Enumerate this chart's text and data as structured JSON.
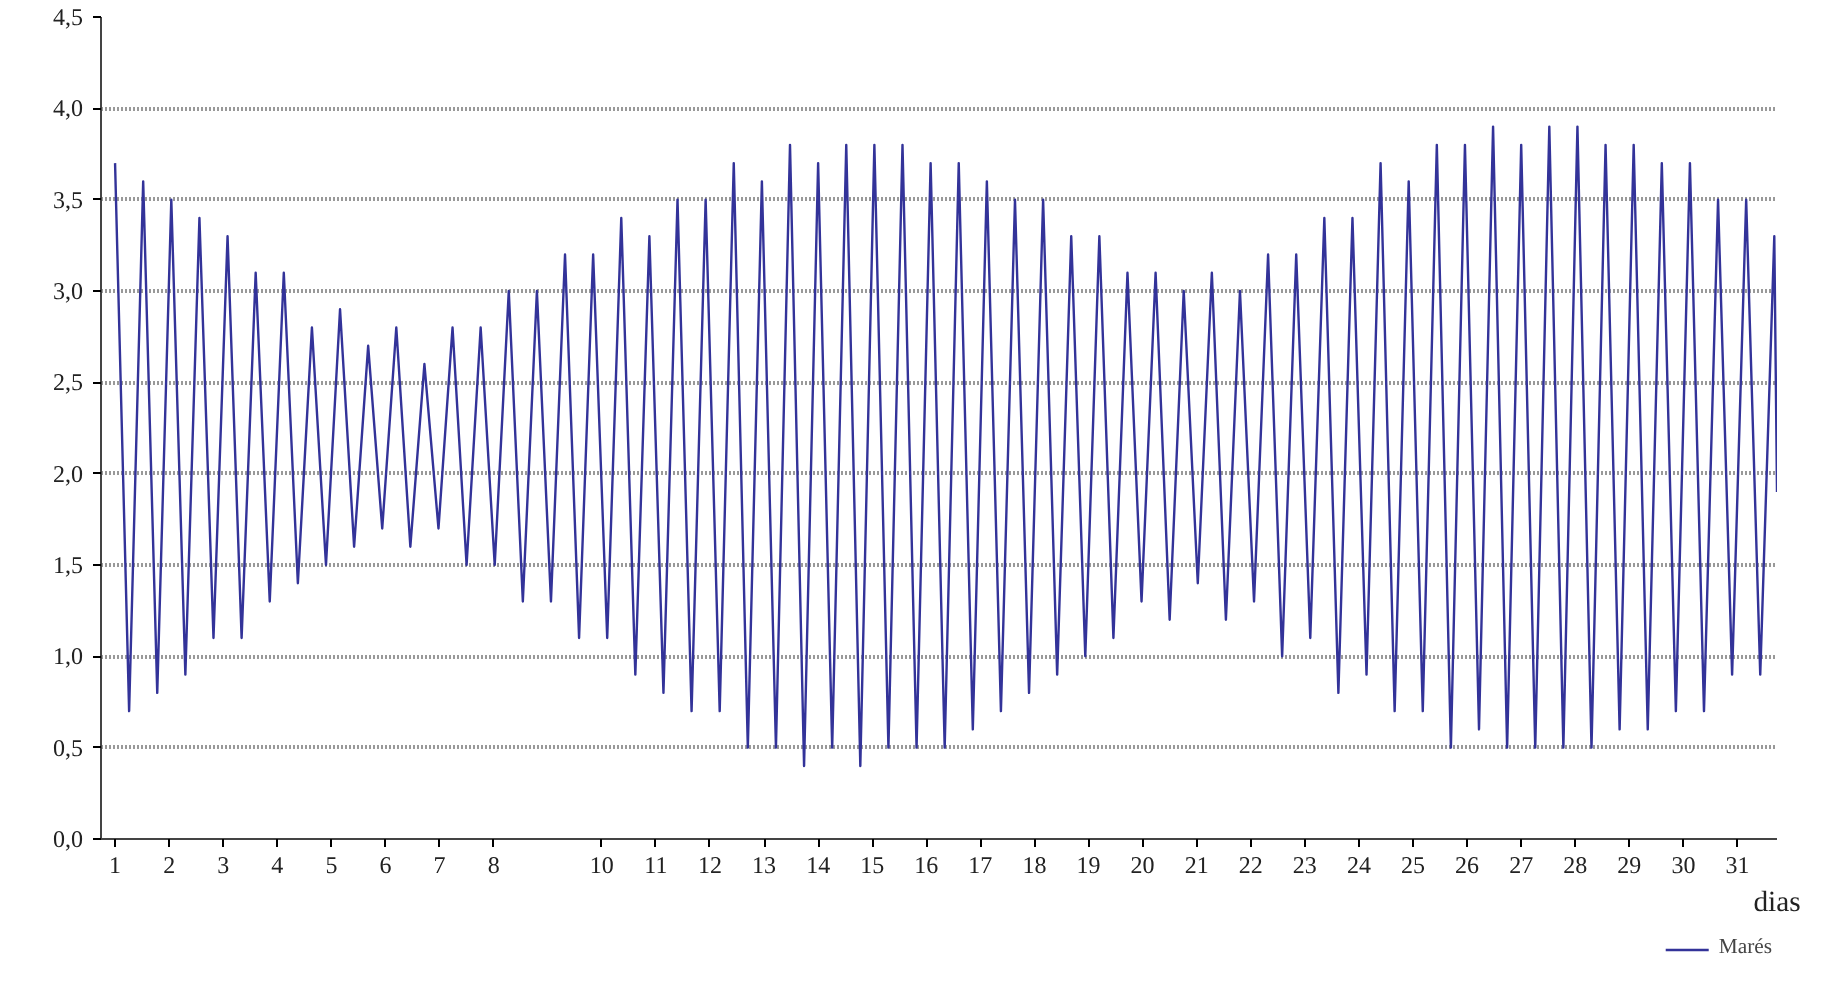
{
  "chart_data": {
    "type": "line",
    "xlabel": "dias",
    "x": [
      1.0,
      1.26,
      1.52,
      1.78,
      2.04,
      2.3,
      2.56,
      2.82,
      3.08,
      3.34,
      3.6,
      3.86,
      4.12,
      4.38,
      4.64,
      4.9,
      5.16,
      5.42,
      5.68,
      5.94,
      6.2,
      6.46,
      6.72,
      6.98,
      7.24,
      7.5,
      7.76,
      8.02,
      8.28,
      8.54,
      8.8,
      9.06,
      9.32,
      9.58,
      9.84,
      10.1,
      10.36,
      10.62,
      10.88,
      11.14,
      11.4,
      11.66,
      11.92,
      12.18,
      12.44,
      12.7,
      12.96,
      13.22,
      13.48,
      13.74,
      14.0,
      14.26,
      14.52,
      14.78,
      15.04,
      15.3,
      15.56,
      15.82,
      16.08,
      16.34,
      16.6,
      16.86,
      17.12,
      17.38,
      17.64,
      17.9,
      18.16,
      18.42,
      18.68,
      18.94,
      19.2,
      19.46,
      19.72,
      19.98,
      20.24,
      20.5,
      20.76,
      21.02,
      21.28,
      21.54,
      21.8,
      22.06,
      22.32,
      22.58,
      22.84,
      23.1,
      23.36,
      23.62,
      23.88,
      24.14,
      24.4,
      24.66,
      24.92,
      25.18,
      25.44,
      25.7,
      25.96,
      26.22,
      26.48,
      26.74,
      27.0,
      27.26,
      27.52,
      27.78,
      28.04,
      28.3,
      28.56,
      28.82,
      29.08,
      29.34,
      29.6,
      29.86,
      30.12,
      30.38,
      30.64,
      30.9,
      31.16,
      31.42,
      31.68,
      31.73
    ],
    "series": [
      {
        "name": "Marés",
        "color": "#333399",
        "values": [
          3.7,
          0.7,
          3.6,
          0.8,
          3.5,
          0.9,
          3.4,
          1.1,
          3.3,
          1.1,
          3.1,
          1.3,
          3.1,
          1.4,
          2.8,
          1.5,
          2.9,
          1.6,
          2.7,
          1.7,
          2.8,
          1.6,
          2.6,
          1.7,
          2.8,
          1.5,
          2.8,
          1.5,
          3.0,
          1.3,
          3.0,
          1.3,
          3.2,
          1.1,
          3.2,
          1.1,
          3.4,
          0.9,
          3.3,
          0.8,
          3.5,
          0.7,
          3.5,
          0.7,
          3.7,
          0.5,
          3.6,
          0.5,
          3.8,
          0.4,
          3.7,
          0.5,
          3.8,
          0.4,
          3.8,
          0.5,
          3.8,
          0.5,
          3.7,
          0.5,
          3.7,
          0.6,
          3.6,
          0.7,
          3.5,
          0.8,
          3.5,
          0.9,
          3.3,
          1.0,
          3.3,
          1.1,
          3.1,
          1.3,
          3.1,
          1.2,
          3.0,
          1.4,
          3.1,
          1.2,
          3.0,
          1.3,
          3.2,
          1.0,
          3.2,
          1.1,
          3.4,
          0.8,
          3.4,
          0.9,
          3.7,
          0.7,
          3.6,
          0.7,
          3.8,
          0.5,
          3.8,
          0.6,
          3.9,
          0.5,
          3.8,
          0.5,
          3.9,
          0.5,
          3.9,
          0.5,
          3.8,
          0.6,
          3.8,
          0.6,
          3.7,
          0.7,
          3.7,
          0.7,
          3.5,
          0.9,
          3.5,
          0.9,
          3.3,
          1.9
        ]
      }
    ],
    "xlim": [
      0.74,
      31.73
    ],
    "xticks": [
      1,
      2,
      3,
      4,
      5,
      6,
      7,
      8,
      10,
      11,
      12,
      13,
      14,
      15,
      16,
      17,
      18,
      19,
      20,
      21,
      22,
      23,
      24,
      25,
      26,
      27,
      28,
      29,
      30,
      31
    ],
    "ylim": [
      0,
      4.5
    ],
    "yticks": [
      {
        "value": 0,
        "label": "0,0"
      },
      {
        "value": 0.5,
        "label": "0,5"
      },
      {
        "value": 1,
        "label": "1,0"
      },
      {
        "value": 1.5,
        "label": "1,5"
      },
      {
        "value": 2,
        "label": "2,0"
      },
      {
        "value": 2.5,
        "label": "2,5"
      },
      {
        "value": 3,
        "label": "3,0"
      },
      {
        "value": 3.5,
        "label": "3,5"
      },
      {
        "value": 4,
        "label": "4,0"
      },
      {
        "value": 4.5,
        "label": "4,5"
      }
    ],
    "grid": "y",
    "legend": "bottom right",
    "line_style": "solid"
  }
}
